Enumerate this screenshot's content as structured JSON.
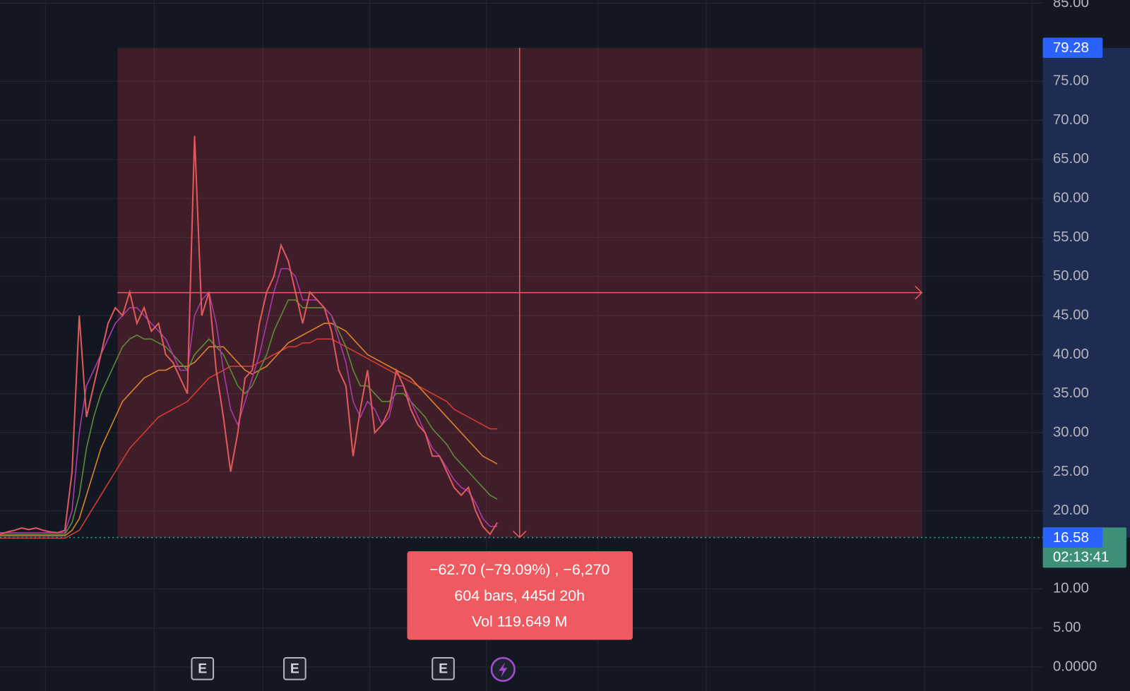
{
  "chart_data": {
    "type": "line",
    "ylim": [
      -3.07,
      85.4
    ],
    "yticks": [
      {
        "value": 0,
        "label": "0.0000"
      },
      {
        "value": 5,
        "label": "5.00"
      },
      {
        "value": 10,
        "label": "10.00"
      },
      {
        "value": 20,
        "label": "20.00"
      },
      {
        "value": 25,
        "label": "25.00"
      },
      {
        "value": 30,
        "label": "30.00"
      },
      {
        "value": 35,
        "label": "35.00"
      },
      {
        "value": 40,
        "label": "40.00"
      },
      {
        "value": 45,
        "label": "45.00"
      },
      {
        "value": 50,
        "label": "50.00"
      },
      {
        "value": 55,
        "label": "55.00"
      },
      {
        "value": 60,
        "label": "60.00"
      },
      {
        "value": 65,
        "label": "65.00"
      },
      {
        "value": 70,
        "label": "70.00"
      },
      {
        "value": 75,
        "label": "75.00"
      },
      {
        "value": 85,
        "label": "85.00"
      }
    ],
    "grid": true,
    "series": [
      {
        "color": "#e0595b",
        "values": [
          17,
          17.3,
          17.5,
          17.8,
          17.6,
          17.8,
          17.5,
          17.3,
          17.2,
          17.5,
          25,
          45,
          32,
          36,
          40,
          44,
          46,
          45,
          48,
          44,
          46,
          43,
          44,
          40,
          39,
          37,
          35,
          68,
          45,
          48,
          38,
          32,
          25,
          30,
          37,
          38,
          44,
          48,
          50,
          54,
          52,
          48,
          44,
          48,
          47,
          46,
          43,
          38,
          36,
          27,
          33,
          38,
          30,
          31,
          33,
          38,
          36,
          33,
          31,
          30,
          27,
          27,
          25,
          23,
          22,
          23,
          20,
          18,
          17,
          18.5
        ]
      },
      {
        "color": "#a83aa8",
        "values": [
          17.2,
          17.2,
          17.2,
          17.2,
          17.2,
          17.2,
          17.2,
          17.2,
          17.2,
          17.2,
          20,
          30,
          36,
          38,
          40,
          42,
          44,
          45,
          46,
          46,
          45,
          44,
          43,
          42,
          40,
          38,
          38,
          45,
          47,
          48,
          44,
          38,
          33,
          31,
          34,
          37,
          40,
          44,
          48,
          51,
          51,
          50,
          47,
          47,
          47,
          46,
          45,
          42,
          39,
          34,
          32,
          34,
          33,
          31,
          32,
          36,
          36,
          34,
          32,
          30,
          28,
          27,
          25.5,
          24,
          23,
          22.5,
          21,
          19,
          18,
          18
        ]
      },
      {
        "color": "#5b8a3a",
        "values": [
          17,
          17,
          17,
          17,
          17,
          17,
          17,
          17,
          17,
          17,
          18.5,
          22,
          28,
          32,
          35,
          37,
          39,
          41,
          42,
          42.5,
          42,
          42,
          41.5,
          41,
          40,
          39,
          38,
          40,
          41,
          42,
          41,
          40,
          38,
          36,
          35,
          36,
          38,
          40,
          43,
          45,
          47,
          47,
          46,
          46,
          46,
          46,
          45,
          43,
          41,
          38,
          36,
          36,
          35,
          34,
          34,
          35,
          35,
          34,
          33,
          32,
          30.5,
          29.5,
          28.5,
          27,
          26,
          25,
          24,
          23,
          22,
          21.5
        ]
      },
      {
        "color": "#d9822b",
        "values": [
          16.8,
          16.8,
          16.8,
          16.8,
          16.8,
          16.8,
          16.8,
          16.8,
          16.8,
          16.8,
          17.5,
          19,
          22,
          25,
          28,
          30,
          32,
          34,
          35,
          36,
          37,
          37.5,
          38,
          38,
          38.5,
          38.5,
          38.5,
          39,
          40,
          41,
          41,
          41,
          40,
          39,
          38,
          37.5,
          38,
          38.5,
          39.5,
          40.5,
          41.5,
          42,
          42.5,
          43,
          43.5,
          44,
          44,
          43.5,
          43,
          42,
          41,
          40,
          39.5,
          39,
          38.5,
          38,
          37.5,
          37,
          36,
          35,
          34,
          33,
          32,
          31,
          30,
          29,
          28,
          27,
          26.5,
          26
        ]
      },
      {
        "color": "#d33a32",
        "values": [
          16.5,
          16.5,
          16.5,
          16.5,
          16.5,
          16.5,
          16.5,
          16.5,
          16.5,
          16.5,
          17,
          17.5,
          19,
          20.5,
          22,
          23.5,
          25,
          26.5,
          28,
          29,
          30,
          31,
          32,
          32.5,
          33,
          33.5,
          34,
          35,
          36,
          37,
          37.5,
          38,
          38.5,
          38.5,
          38.5,
          38.5,
          39,
          39.5,
          40,
          40.5,
          41,
          41,
          41.5,
          41.5,
          42,
          42,
          42,
          41.5,
          41,
          40.5,
          40,
          39.5,
          39,
          38.5,
          38,
          37.5,
          37,
          36.5,
          36,
          35.5,
          35,
          34.5,
          34,
          33,
          32.5,
          32,
          31.5,
          31,
          30.5,
          30.5
        ]
      }
    ],
    "measure": {
      "from": 79.28,
      "to": 16.58,
      "lines": [
        "−62.70 (−79.09%) , −6,270",
        "604 bars, 445d 20h",
        "Vol 119.649 M"
      ]
    },
    "last_price": 16.58,
    "countdown": "02:13:41",
    "events": [
      "E",
      "E",
      "E"
    ]
  }
}
